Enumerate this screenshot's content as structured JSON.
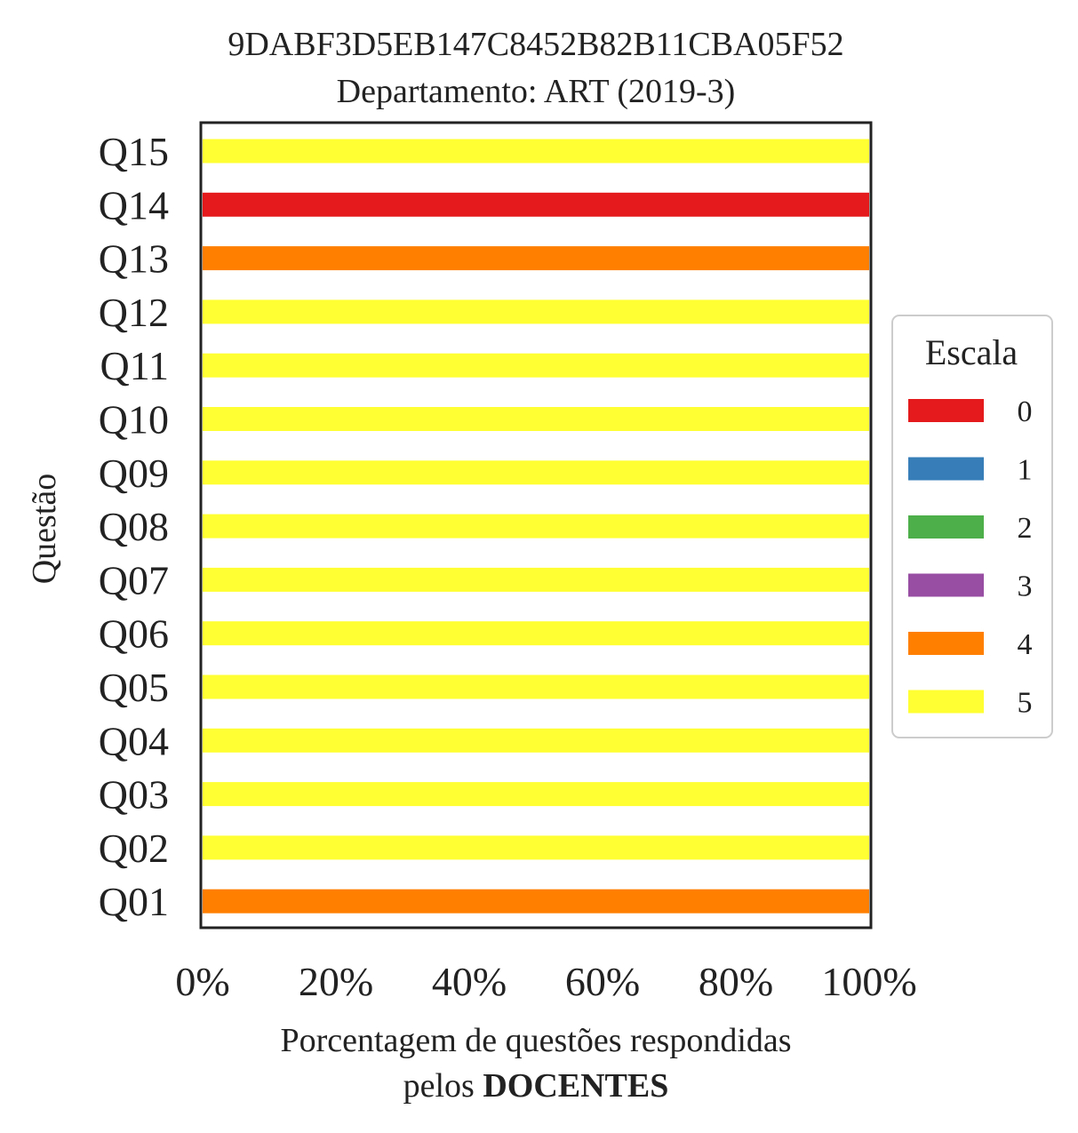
{
  "chart_data": {
    "type": "bar",
    "orientation": "horizontal",
    "stacked": true,
    "title": [
      "9DABF3D5EB147C8452B82B11CBA05F52",
      "Departamento: ART (2019-3)"
    ],
    "ylabel": "Questão",
    "xlabel_line1": "Porcentagem de questões respondidas",
    "xlabel_line2_prefix": "pelos ",
    "xlabel_line2_bold": "DOCENTES",
    "xlim": [
      0,
      100
    ],
    "xticks": [
      "0%",
      "20%",
      "40%",
      "60%",
      "80%",
      "100%"
    ],
    "xtick_values": [
      0,
      20,
      40,
      60,
      80,
      100
    ],
    "categories": [
      "Q01",
      "Q02",
      "Q03",
      "Q04",
      "Q05",
      "Q06",
      "Q07",
      "Q08",
      "Q09",
      "Q10",
      "Q11",
      "Q12",
      "Q13",
      "Q14",
      "Q15"
    ],
    "series": [
      {
        "name": "0",
        "color": "#e41a1c",
        "values": [
          0,
          0,
          0,
          0,
          0,
          0,
          0,
          0,
          0,
          0,
          0,
          0,
          0,
          100,
          0
        ]
      },
      {
        "name": "1",
        "color": "#377eb8",
        "values": [
          0,
          0,
          0,
          0,
          0,
          0,
          0,
          0,
          0,
          0,
          0,
          0,
          0,
          0,
          0
        ]
      },
      {
        "name": "2",
        "color": "#4daf4a",
        "values": [
          0,
          0,
          0,
          0,
          0,
          0,
          0,
          0,
          0,
          0,
          0,
          0,
          0,
          0,
          0
        ]
      },
      {
        "name": "3",
        "color": "#984ea3",
        "values": [
          0,
          0,
          0,
          0,
          0,
          0,
          0,
          0,
          0,
          0,
          0,
          0,
          0,
          0,
          0
        ]
      },
      {
        "name": "4",
        "color": "#ff7f00",
        "values": [
          100,
          0,
          0,
          0,
          0,
          0,
          0,
          0,
          0,
          0,
          0,
          0,
          100,
          0,
          0
        ]
      },
      {
        "name": "5",
        "color": "#ffff33",
        "values": [
          0,
          100,
          100,
          100,
          100,
          100,
          100,
          100,
          100,
          100,
          100,
          100,
          0,
          0,
          100
        ]
      }
    ],
    "legend": {
      "title": "Escala",
      "placement": "right"
    },
    "grid": false
  }
}
